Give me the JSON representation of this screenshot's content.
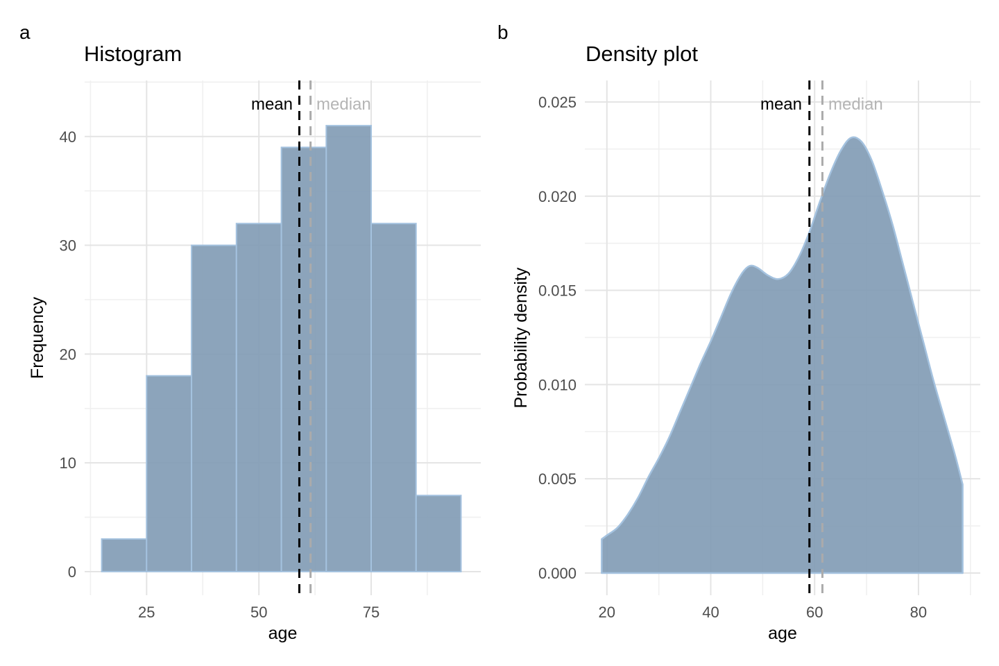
{
  "figure": {
    "background": "#ffffff",
    "panel_a_tag": "a",
    "panel_b_tag": "b"
  },
  "colors": {
    "area_fill": "#7f9ab4",
    "area_fill_opacity": 0.9,
    "area_outline": "#a4c2df",
    "grid_major": "#e4e4e4",
    "grid_minor": "#f0f0f0",
    "tick_text": "#4d4d4d",
    "title_text": "#000000",
    "mean_line": "#000000",
    "median_line": "#ababab",
    "median_label_text": "#b5b5b5"
  },
  "chart_data": [
    {
      "type": "bar",
      "panel": "a",
      "title": "Histogram",
      "xlabel": "age",
      "ylabel": "Frequency",
      "bin_edges": [
        15,
        25,
        35,
        45,
        55,
        65,
        75,
        85,
        95
      ],
      "values": [
        3,
        18,
        30,
        32,
        39,
        41,
        32,
        7
      ],
      "x_ticks": [
        25,
        50,
        75
      ],
      "x_tick_labels": [
        "25",
        "50",
        "75"
      ],
      "y_ticks": [
        0,
        10,
        20,
        30,
        40
      ],
      "y_tick_labels": [
        "0",
        "10",
        "20",
        "30",
        "40"
      ],
      "xlim": [
        11.2,
        99.4
      ],
      "ylim": [
        -2.17,
        45.15
      ],
      "mean": 59,
      "median": 61.5,
      "mean_label": "mean",
      "median_label": "median",
      "grid": "major+minor",
      "legend": "none"
    },
    {
      "type": "area",
      "panel": "b",
      "title": "Density plot",
      "xlabel": "age",
      "ylabel": "Probability density",
      "x": [
        19,
        20,
        22,
        24,
        26,
        28,
        30,
        32,
        34,
        36,
        38,
        40,
        42,
        44,
        46,
        47.5,
        49,
        51,
        53,
        55,
        57,
        59,
        61,
        63,
        65,
        67,
        69,
        71,
        73,
        75,
        77,
        79,
        81,
        83,
        85,
        87,
        88.5
      ],
      "y": [
        0.0018,
        0.002,
        0.0024,
        0.0031,
        0.004,
        0.0051,
        0.0061,
        0.0072,
        0.0085,
        0.0098,
        0.0111,
        0.0123,
        0.0136,
        0.0149,
        0.0159,
        0.0163,
        0.0162,
        0.0158,
        0.0156,
        0.0159,
        0.0168,
        0.0181,
        0.0197,
        0.0212,
        0.0224,
        0.0231,
        0.0229,
        0.0219,
        0.0203,
        0.0185,
        0.0164,
        0.0143,
        0.0122,
        0.0101,
        0.0082,
        0.0063,
        0.0047
      ],
      "x_ticks": [
        20,
        40,
        60,
        80
      ],
      "x_tick_labels": [
        "20",
        "40",
        "60",
        "80"
      ],
      "y_ticks": [
        0,
        0.005,
        0.01,
        0.015,
        0.02,
        0.025
      ],
      "y_tick_labels": [
        "0.000",
        "0.005",
        "0.010",
        "0.015",
        "0.020",
        "0.025"
      ],
      "xlim": [
        15.75,
        91.9
      ],
      "ylim": [
        -0.00118,
        0.02614
      ],
      "mean": 59,
      "median": 61.5,
      "mean_label": "mean",
      "median_label": "median",
      "grid": "major+minor",
      "legend": "none"
    }
  ]
}
